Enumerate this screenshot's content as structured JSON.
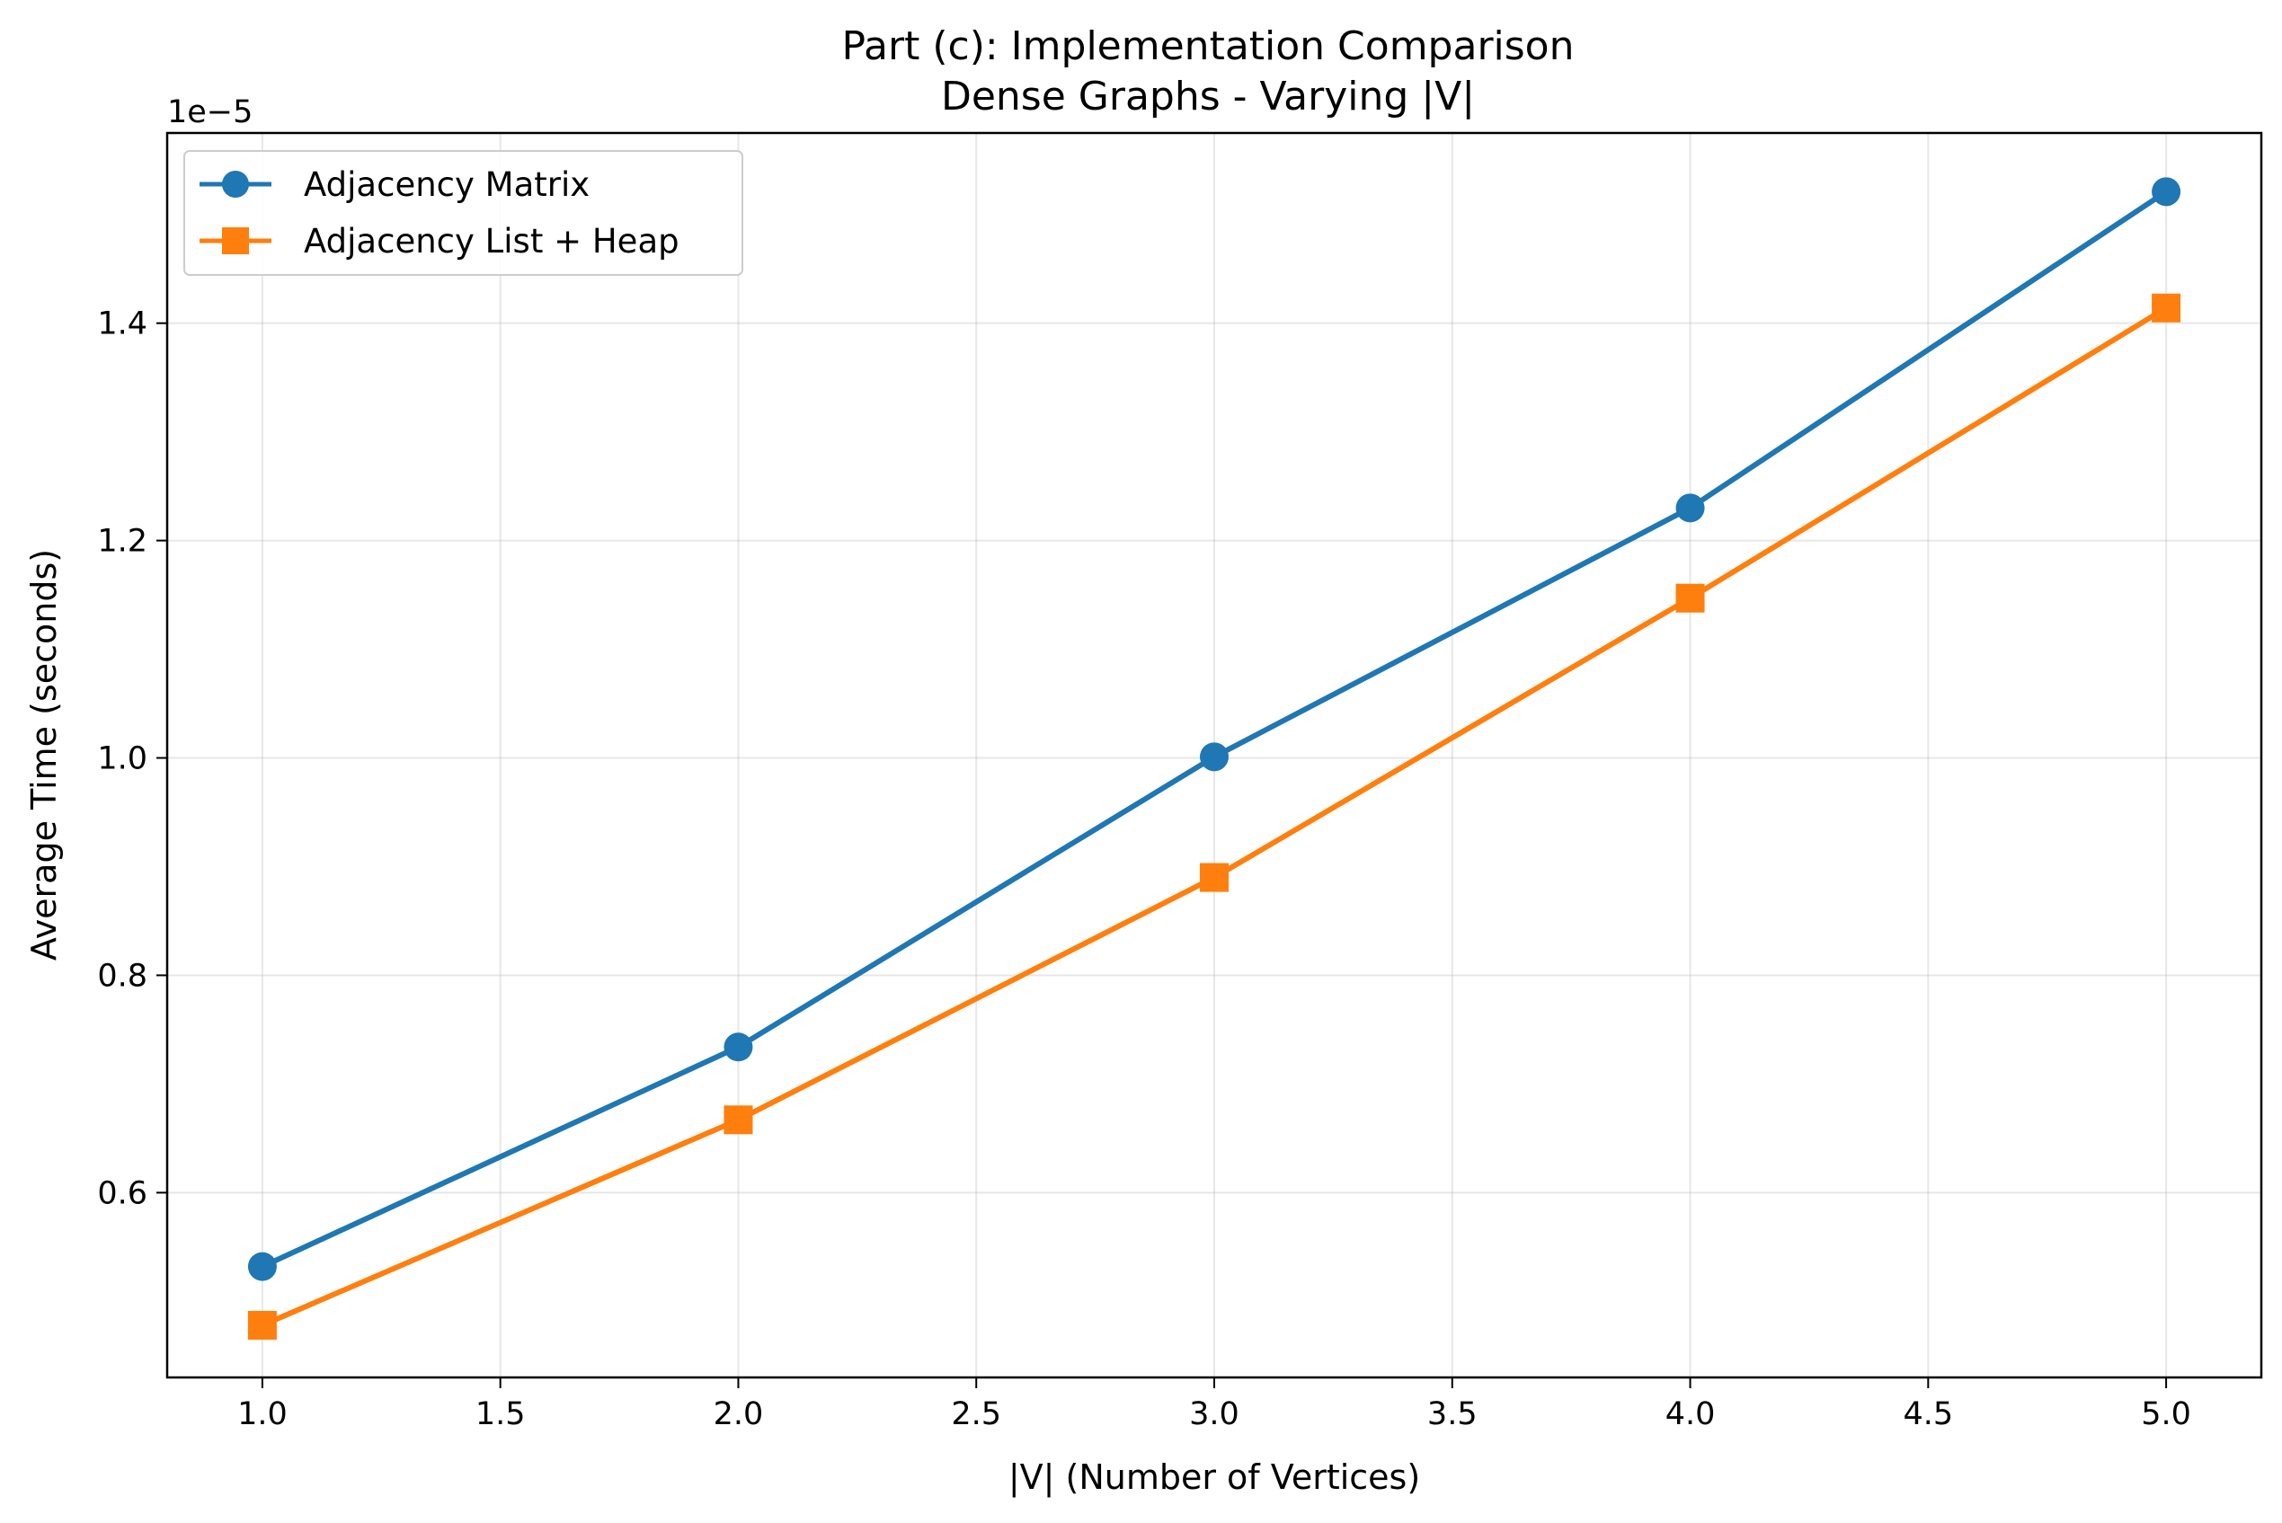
{
  "chart_data": {
    "type": "line",
    "title": "Part (c): Implementation Comparison",
    "subtitle": "Dense Graphs - Varying |V|",
    "xlabel": "|V| (Number of Vertices)",
    "ylabel": "Average Time (seconds)",
    "y_offset_label": "1e−5",
    "xlim": [
      0.8,
      5.2
    ],
    "ylim": [
      0.43,
      1.575
    ],
    "x_ticks": [
      1.0,
      1.5,
      2.0,
      2.5,
      3.0,
      3.5,
      4.0,
      4.5,
      5.0
    ],
    "x_tick_labels": [
      "1.0",
      "1.5",
      "2.0",
      "2.5",
      "3.0",
      "3.5",
      "4.0",
      "4.5",
      "5.0"
    ],
    "y_ticks": [
      0.6,
      0.8,
      1.0,
      1.2,
      1.4
    ],
    "y_tick_labels": [
      "0.6",
      "0.8",
      "1.0",
      "1.2",
      "1.4"
    ],
    "grid": true,
    "legend_position": "top-left",
    "x": [
      1.0,
      2.0,
      3.0,
      4.0,
      5.0
    ],
    "series": [
      {
        "name": "Adjacency Matrix",
        "values": [
          0.532,
          0.734,
          1.001,
          1.23,
          1.521
        ],
        "color": "#1f77b4",
        "marker": "circle"
      },
      {
        "name": "Adjacency List + Heap",
        "values": [
          0.478,
          0.667,
          0.89,
          1.147,
          1.414
        ],
        "color": "#ff7f0e",
        "marker": "square"
      }
    ]
  }
}
